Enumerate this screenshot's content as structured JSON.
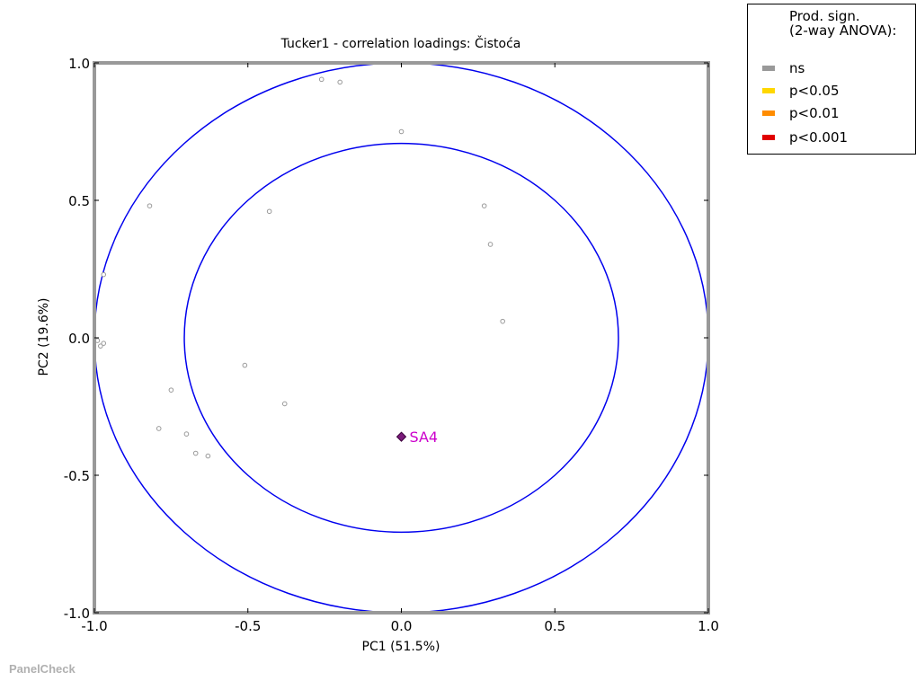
{
  "chart_data": {
    "type": "scatter",
    "title": "Tucker1 - correlation loadings: Čistoća",
    "xlabel": "PC1 (51.5%)",
    "ylabel": "PC2 (19.6%)",
    "xlim": [
      -1.0,
      1.0
    ],
    "ylim": [
      -1.0,
      1.0
    ],
    "xticks": [
      "-1.0",
      "-0.5",
      "0.0",
      "0.5",
      "1.0"
    ],
    "yticks": [
      "-1.0",
      "-0.5",
      "0.0",
      "0.5",
      "1.0"
    ],
    "grid": false,
    "circles": [
      {
        "radius": 1.0,
        "color": "#0000ee"
      },
      {
        "radius": 0.7071,
        "color": "#0000ee"
      }
    ],
    "points": [
      {
        "x": -0.26,
        "y": 0.94
      },
      {
        "x": -0.2,
        "y": 0.93
      },
      {
        "x": 0.0,
        "y": 0.75
      },
      {
        "x": -0.82,
        "y": 0.48
      },
      {
        "x": -0.43,
        "y": 0.46
      },
      {
        "x": 0.27,
        "y": 0.48
      },
      {
        "x": 0.29,
        "y": 0.34
      },
      {
        "x": -0.97,
        "y": 0.23
      },
      {
        "x": 0.33,
        "y": 0.06
      },
      {
        "x": -0.99,
        "y": -0.01
      },
      {
        "x": -0.98,
        "y": -0.03
      },
      {
        "x": -0.97,
        "y": -0.02
      },
      {
        "x": -0.51,
        "y": -0.1
      },
      {
        "x": -0.75,
        "y": -0.19
      },
      {
        "x": -0.38,
        "y": -0.24
      },
      {
        "x": -0.79,
        "y": -0.33
      },
      {
        "x": -0.7,
        "y": -0.35
      },
      {
        "x": -0.67,
        "y": -0.42
      },
      {
        "x": -0.63,
        "y": -0.43
      }
    ],
    "highlight": {
      "x": 0.0,
      "y": -0.36,
      "label": "SA4",
      "color": "#cc00cc"
    },
    "point_color": "#9a9a9a",
    "frame_color": "#999999"
  },
  "legend": {
    "title": "Prod. sign.\n(2-way ANOVA):",
    "items": [
      {
        "label": "ns",
        "color": "#999999"
      },
      {
        "label": "p<0.05",
        "color": "#ffd700"
      },
      {
        "label": "p<0.01",
        "color": "#ff8c00"
      },
      {
        "label": "p<0.001",
        "color": "#e00000"
      }
    ]
  },
  "watermark": "PanelCheck"
}
